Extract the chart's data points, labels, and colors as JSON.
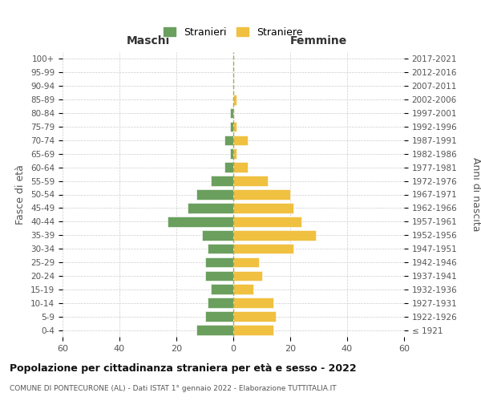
{
  "age_groups": [
    "100+",
    "95-99",
    "90-94",
    "85-89",
    "80-84",
    "75-79",
    "70-74",
    "65-69",
    "60-64",
    "55-59",
    "50-54",
    "45-49",
    "40-44",
    "35-39",
    "30-34",
    "25-29",
    "20-24",
    "15-19",
    "10-14",
    "5-9",
    "0-4"
  ],
  "birth_years": [
    "≤ 1921",
    "1922-1926",
    "1927-1931",
    "1932-1936",
    "1937-1941",
    "1942-1946",
    "1947-1951",
    "1952-1956",
    "1957-1961",
    "1962-1966",
    "1967-1971",
    "1972-1976",
    "1977-1981",
    "1982-1986",
    "1987-1991",
    "1992-1996",
    "1997-2001",
    "2002-2006",
    "2007-2011",
    "2012-2016",
    "2017-2021"
  ],
  "maschi": [
    0,
    0,
    0,
    0,
    1,
    1,
    3,
    1,
    3,
    8,
    13,
    16,
    23,
    11,
    9,
    10,
    10,
    8,
    9,
    10,
    13
  ],
  "femmine": [
    0,
    0,
    0,
    1,
    0,
    1,
    5,
    1,
    5,
    12,
    20,
    21,
    24,
    29,
    21,
    9,
    10,
    7,
    14,
    15,
    14
  ],
  "color_maschi": "#6a9f5e",
  "color_femmine": "#f0c040",
  "title": "Popolazione per cittadinanza straniera per età e sesso - 2022",
  "subtitle": "COMUNE DI PONTECURONE (AL) - Dati ISTAT 1° gennaio 2022 - Elaborazione TUTTITALIA.IT",
  "xlabel_left": "Maschi",
  "xlabel_right": "Femmine",
  "ylabel_left": "Fasce di età",
  "ylabel_right": "Anni di nascita",
  "legend_maschi": "Stranieri",
  "legend_femmine": "Straniere",
  "xlim": 60,
  "background_color": "#ffffff",
  "grid_color": "#cccccc"
}
